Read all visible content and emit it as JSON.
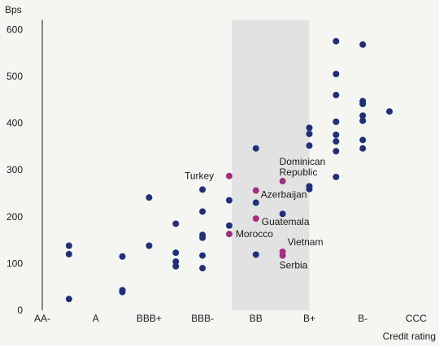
{
  "chart_data": {
    "type": "scatter",
    "ylabel": "Bps",
    "xlabel": "Credit rating",
    "ylim": [
      0,
      600
    ],
    "yticks": [
      0,
      100,
      200,
      300,
      400,
      500,
      600
    ],
    "categories": [
      "AA-",
      "A",
      "BBB+",
      "BBB-",
      "BB",
      "B+",
      "B-",
      "CCC"
    ],
    "grid": false,
    "shaded_band": {
      "from": 3.55,
      "to": 5
    },
    "colors": {
      "points": "#1f2f7a",
      "highlight": "#a0307e",
      "band": "#e2e2e2"
    },
    "series": [
      {
        "points": [
          {
            "x": 0.5,
            "y": 138
          },
          {
            "x": 0.5,
            "y": 120
          },
          {
            "x": 0.5,
            "y": 24
          },
          {
            "x": 1.5,
            "y": 115
          },
          {
            "x": 1.5,
            "y": 43
          },
          {
            "x": 1.5,
            "y": 39
          },
          {
            "x": 2,
            "y": 241
          },
          {
            "x": 2,
            "y": 138
          },
          {
            "x": 2.5,
            "y": 185
          },
          {
            "x": 2.5,
            "y": 123
          },
          {
            "x": 2.5,
            "y": 104
          },
          {
            "x": 2.5,
            "y": 94
          },
          {
            "x": 3,
            "y": 258
          },
          {
            "x": 3,
            "y": 211
          },
          {
            "x": 3,
            "y": 161
          },
          {
            "x": 3,
            "y": 155
          },
          {
            "x": 3,
            "y": 117
          },
          {
            "x": 3,
            "y": 90
          },
          {
            "x": 3.5,
            "y": 235
          },
          {
            "x": 3.5,
            "y": 181
          },
          {
            "x": 4,
            "y": 346
          },
          {
            "x": 4,
            "y": 230
          },
          {
            "x": 4,
            "y": 119
          },
          {
            "x": 4.5,
            "y": 206
          },
          {
            "x": 5,
            "y": 390
          },
          {
            "x": 5,
            "y": 377
          },
          {
            "x": 5,
            "y": 352
          },
          {
            "x": 5,
            "y": 265
          },
          {
            "x": 5,
            "y": 259
          },
          {
            "x": 5.5,
            "y": 575
          },
          {
            "x": 5.5,
            "y": 505
          },
          {
            "x": 5.5,
            "y": 460
          },
          {
            "x": 5.5,
            "y": 403
          },
          {
            "x": 5.5,
            "y": 375
          },
          {
            "x": 5.5,
            "y": 361
          },
          {
            "x": 5.5,
            "y": 340
          },
          {
            "x": 5.5,
            "y": 285
          },
          {
            "x": 6,
            "y": 568
          },
          {
            "x": 6,
            "y": 447
          },
          {
            "x": 6,
            "y": 441
          },
          {
            "x": 6,
            "y": 416
          },
          {
            "x": 6,
            "y": 405
          },
          {
            "x": 6,
            "y": 364
          },
          {
            "x": 6,
            "y": 346
          },
          {
            "x": 6.5,
            "y": 425
          }
        ]
      },
      {
        "points": [
          {
            "x": 3.5,
            "y": 287,
            "label": "Turkey"
          },
          {
            "x": 3.5,
            "y": 163,
            "label": "Morocco"
          },
          {
            "x": 4,
            "y": 256,
            "label": "Azerbaijan"
          },
          {
            "x": 4,
            "y": 196,
            "label": "Guatemala"
          },
          {
            "x": 4.5,
            "y": 276,
            "label": "Dominican Republic"
          },
          {
            "x": 4.5,
            "y": 125,
            "label": "Vietnam"
          },
          {
            "x": 4.5,
            "y": 117,
            "label": "Serbia"
          }
        ]
      }
    ],
    "annotations": [
      {
        "text": "Turkey",
        "point": "Turkey"
      },
      {
        "text": "Morocco",
        "point": "Morocco"
      },
      {
        "text": "Azerbaijan",
        "point": "Azerbaijan"
      },
      {
        "text": "Guatemala",
        "point": "Guatemala"
      },
      {
        "text": "Dominican",
        "point": "Dominican Republic"
      },
      {
        "text": "Republic",
        "point": "Dominican Republic"
      },
      {
        "text": "Vietnam",
        "point": "Vietnam"
      },
      {
        "text": "Serbia",
        "point": "Serbia"
      }
    ]
  }
}
